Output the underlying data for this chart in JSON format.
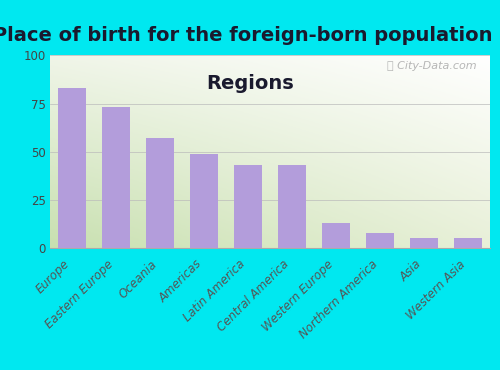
{
  "title_line1": "Place of birth for the foreign-born population -",
  "title_line2": "Regions",
  "categories": [
    "Europe",
    "Eastern Europe",
    "Oceania",
    "Americas",
    "Latin America",
    "Central America",
    "Western Europe",
    "Northern America",
    "Asia",
    "Western Asia"
  ],
  "values": [
    83,
    73,
    57,
    49,
    43,
    43,
    13,
    8,
    5,
    5
  ],
  "bar_color": "#b39ddb",
  "bg_color_topleft": "#f0f5e8",
  "bg_color_topright": "#ffffff",
  "bg_color_bottomleft": "#d4eac0",
  "bg_color_bottomright": "#f8f8f0",
  "outer_background": "#00e8f0",
  "ylim": [
    0,
    100
  ],
  "yticks": [
    0,
    25,
    50,
    75,
    100
  ],
  "title_fontsize": 14,
  "tick_fontsize": 8.5,
  "watermark": "ⓘ City-Data.com"
}
